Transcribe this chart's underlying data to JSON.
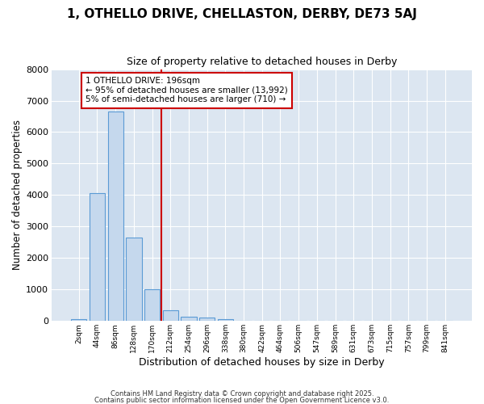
{
  "title1": "1, OTHELLO DRIVE, CHELLASTON, DERBY, DE73 5AJ",
  "title2": "Size of property relative to detached houses in Derby",
  "xlabel": "Distribution of detached houses by size in Derby",
  "ylabel": "Number of detached properties",
  "categories": [
    "2sqm",
    "44sqm",
    "86sqm",
    "128sqm",
    "170sqm",
    "212sqm",
    "254sqm",
    "296sqm",
    "338sqm",
    "380sqm",
    "422sqm",
    "464sqm",
    "506sqm",
    "547sqm",
    "589sqm",
    "631sqm",
    "673sqm",
    "715sqm",
    "757sqm",
    "799sqm",
    "841sqm"
  ],
  "values": [
    55,
    4050,
    6650,
    2650,
    1000,
    330,
    130,
    100,
    55,
    0,
    0,
    0,
    0,
    0,
    0,
    0,
    0,
    0,
    0,
    0,
    0
  ],
  "bar_color": "#c5d8ed",
  "bar_edge_color": "#5b9bd5",
  "vline_pos": 4.5,
  "vline_color": "#cc0000",
  "ylim": [
    0,
    8000
  ],
  "annotation_title": "1 OTHELLO DRIVE: 196sqm",
  "annotation_line1": "← 95% of detached houses are smaller (13,992)",
  "annotation_line2": "5% of semi-detached houses are larger (710) →",
  "annotation_box_color": "#cc0000",
  "plot_bg_color": "#dce6f1",
  "figure_bg_color": "#ffffff",
  "grid_color": "#ffffff",
  "footnote1": "Contains HM Land Registry data © Crown copyright and database right 2025.",
  "footnote2": "Contains public sector information licensed under the Open Government Licence v3.0.",
  "title1_fontsize": 11,
  "title2_fontsize": 9
}
